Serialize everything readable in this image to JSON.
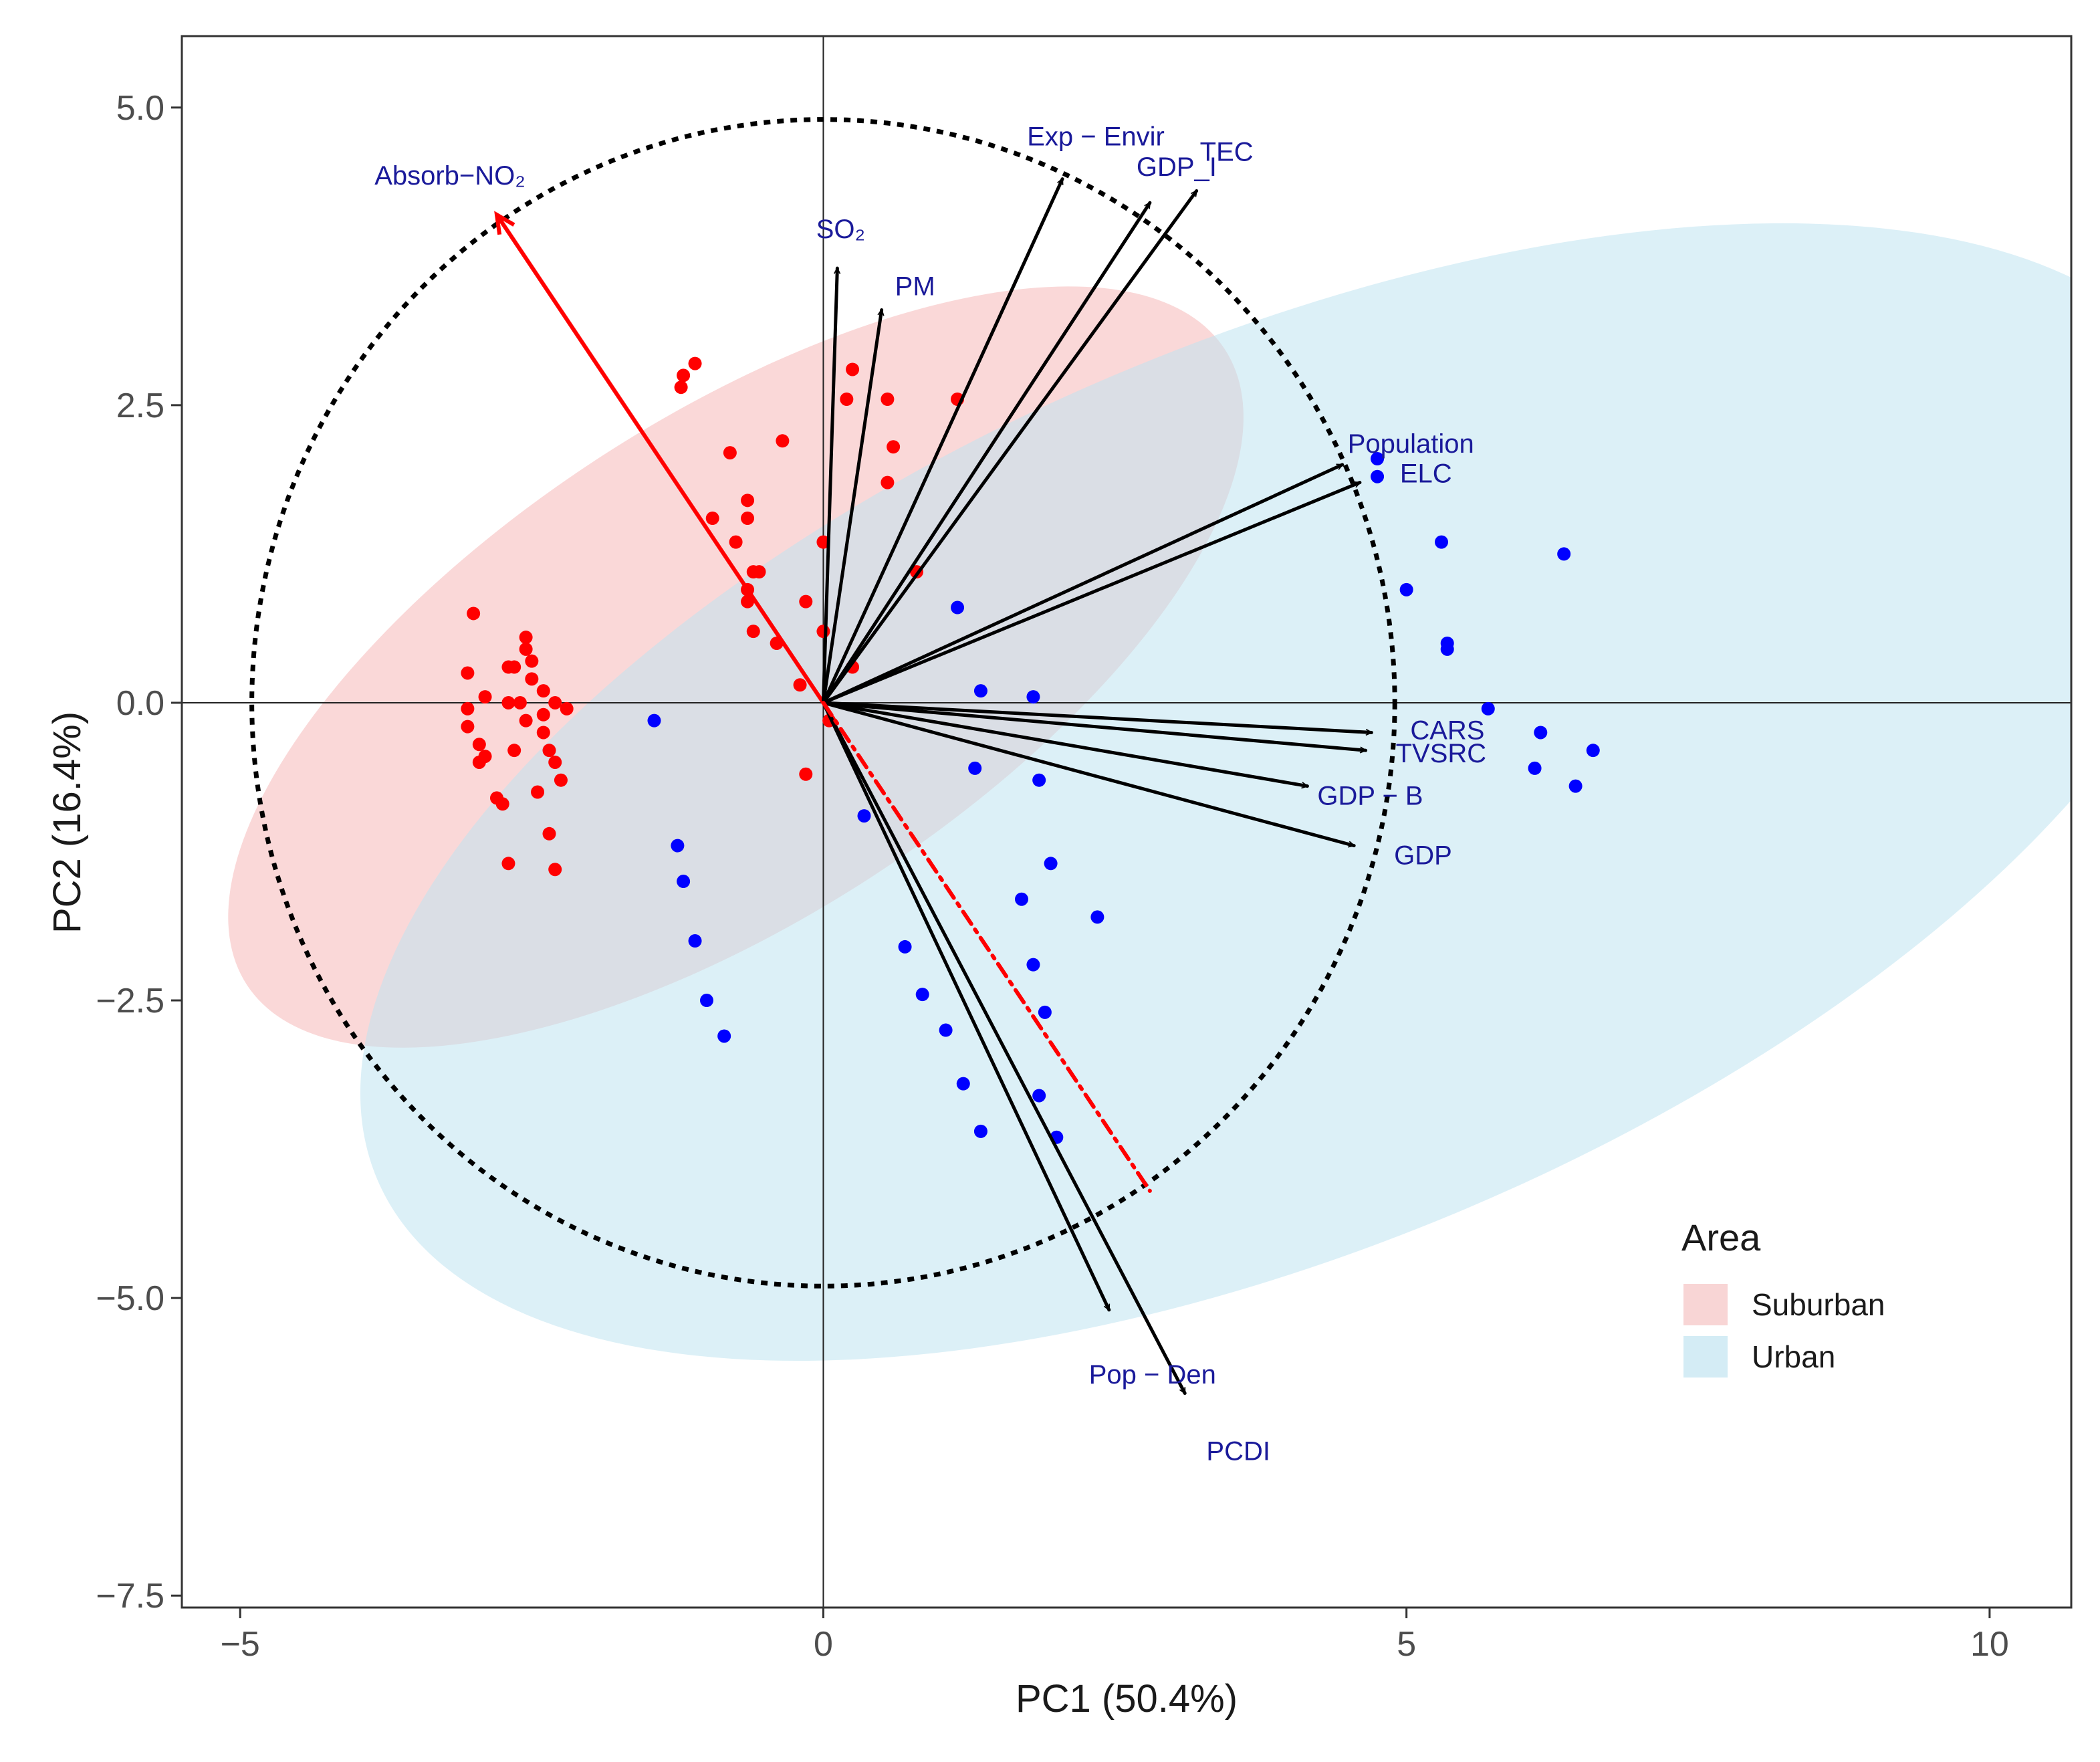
{
  "chart_data": {
    "type": "scatter",
    "subtype": "pca-biplot",
    "title": "",
    "xlabel": "PC1 (50.4%)",
    "ylabel": "PC2 (16.4%)",
    "xlim": [
      -5.5,
      10.7
    ],
    "ylim": [
      -7.6,
      5.6
    ],
    "x_ticks": [
      -5,
      0,
      5,
      10
    ],
    "x_tick_labels": [
      "−5",
      "0",
      "5",
      "10"
    ],
    "y_ticks": [
      5.0,
      2.5,
      0.0,
      -2.5,
      -5.0,
      -7.5
    ],
    "y_tick_labels": [
      "5.0",
      "2.5",
      "0.0",
      "−2.5",
      "−5.0",
      "−7.5"
    ],
    "grid": false,
    "reference_lines": {
      "x": 0,
      "y": 0
    },
    "correlation_circle_radius": 4.9,
    "legend": {
      "title": "Area",
      "position": "bottom-right",
      "entries": [
        {
          "label": "Suburban",
          "color": "#f8d5d5"
        },
        {
          "label": "Urban",
          "color": "#d4ecf5"
        }
      ]
    },
    "ellipses": [
      {
        "group": "Suburban",
        "cx": -0.75,
        "cy": 0.3,
        "semi_major": 5.0,
        "semi_minor": 2.1,
        "angle_deg": 33,
        "color": "#f4a8a8",
        "opacity": 0.45
      },
      {
        "group": "Urban",
        "cx": 4.0,
        "cy": -0.75,
        "semi_major": 8.5,
        "semi_minor": 3.8,
        "angle_deg": 23,
        "color": "#bfe3f0",
        "opacity": 0.55
      }
    ],
    "series": [
      {
        "name": "Suburban",
        "color": "#ff0000",
        "points": [
          [
            -1.2,
            2.75
          ],
          [
            -1.1,
            2.85
          ],
          [
            -1.22,
            2.65
          ],
          [
            0.25,
            2.8
          ],
          [
            0.55,
            2.55
          ],
          [
            0.2,
            2.55
          ],
          [
            1.15,
            2.55
          ],
          [
            -0.35,
            2.2
          ],
          [
            -0.8,
            2.1
          ],
          [
            0.6,
            2.15
          ],
          [
            0.55,
            1.85
          ],
          [
            -0.65,
            1.7
          ],
          [
            -0.65,
            1.55
          ],
          [
            -0.95,
            1.55
          ],
          [
            -0.75,
            1.35
          ],
          [
            0.0,
            1.35
          ],
          [
            0.8,
            1.1
          ],
          [
            -0.55,
            1.1
          ],
          [
            -0.6,
            1.1
          ],
          [
            -0.65,
            0.95
          ],
          [
            -0.65,
            0.85
          ],
          [
            -0.15,
            0.85
          ],
          [
            -0.6,
            0.6
          ],
          [
            0.0,
            0.6
          ],
          [
            -0.4,
            0.5
          ],
          [
            0.25,
            0.3
          ],
          [
            -0.2,
            0.15
          ],
          [
            -3.0,
            0.75
          ],
          [
            -2.55,
            0.55
          ],
          [
            -2.55,
            0.45
          ],
          [
            -2.5,
            0.35
          ],
          [
            -2.7,
            0.3
          ],
          [
            -2.65,
            0.3
          ],
          [
            -3.05,
            0.25
          ],
          [
            -2.5,
            0.2
          ],
          [
            -2.4,
            0.1
          ],
          [
            -2.9,
            0.05
          ],
          [
            -2.6,
            0.0
          ],
          [
            -2.7,
            0.0
          ],
          [
            -2.3,
            0.0
          ],
          [
            -3.05,
            -0.05
          ],
          [
            -2.2,
            -0.05
          ],
          [
            -2.4,
            -0.1
          ],
          [
            -2.55,
            -0.15
          ],
          [
            -3.05,
            -0.2
          ],
          [
            -2.4,
            -0.25
          ],
          [
            -2.95,
            -0.35
          ],
          [
            -2.65,
            -0.4
          ],
          [
            -2.35,
            -0.4
          ],
          [
            -2.9,
            -0.45
          ],
          [
            -2.95,
            -0.5
          ],
          [
            -2.3,
            -0.5
          ],
          [
            -2.25,
            -0.65
          ],
          [
            -2.45,
            -0.75
          ],
          [
            -2.8,
            -0.8
          ],
          [
            -2.75,
            -0.85
          ],
          [
            -2.35,
            -1.1
          ],
          [
            -2.7,
            -1.35
          ],
          [
            -2.3,
            -1.4
          ],
          [
            0.05,
            -0.15
          ],
          [
            -0.15,
            -0.6
          ]
        ]
      },
      {
        "name": "Urban",
        "color": "#0000ff",
        "points": [
          [
            4.75,
            2.05
          ],
          [
            4.75,
            1.9
          ],
          [
            5.3,
            1.35
          ],
          [
            6.35,
            1.25
          ],
          [
            5.0,
            0.95
          ],
          [
            5.35,
            0.5
          ],
          [
            5.35,
            0.45
          ],
          [
            5.7,
            -0.05
          ],
          [
            6.15,
            -0.25
          ],
          [
            6.6,
            -0.4
          ],
          [
            6.1,
            -0.55
          ],
          [
            6.45,
            -0.7
          ],
          [
            1.15,
            0.8
          ],
          [
            1.35,
            0.1
          ],
          [
            1.8,
            0.05
          ],
          [
            1.3,
            -0.55
          ],
          [
            1.85,
            -0.65
          ],
          [
            1.95,
            -1.35
          ],
          [
            1.7,
            -1.65
          ],
          [
            2.35,
            -1.8
          ],
          [
            0.35,
            -0.95
          ],
          [
            0.7,
            -2.05
          ],
          [
            0.85,
            -2.45
          ],
          [
            1.8,
            -2.2
          ],
          [
            1.9,
            -2.6
          ],
          [
            1.05,
            -2.75
          ],
          [
            1.2,
            -3.2
          ],
          [
            1.85,
            -3.3
          ],
          [
            1.35,
            -3.6
          ],
          [
            2.0,
            -3.65
          ],
          [
            -1.45,
            -0.15
          ],
          [
            -1.25,
            -1.2
          ],
          [
            -1.2,
            -1.5
          ],
          [
            -1.1,
            -2.0
          ],
          [
            -1.0,
            -2.5
          ],
          [
            -0.85,
            -2.8
          ]
        ]
      }
    ],
    "vectors": [
      {
        "label": "Absorb−NO₂",
        "x": -2.8,
        "y": 4.1,
        "color": "#ff0000",
        "style": "solid"
      },
      {
        "label": "SO₂",
        "x": 0.12,
        "y": 3.65,
        "color": "#000000",
        "style": "solid"
      },
      {
        "label": "PM",
        "x": 0.5,
        "y": 3.3,
        "color": "#000000",
        "style": "solid"
      },
      {
        "label": "Exp − Envir",
        "x": 2.05,
        "y": 4.4,
        "color": "#000000",
        "style": "solid"
      },
      {
        "label": "GDP_I",
        "x": 2.8,
        "y": 4.2,
        "color": "#000000",
        "style": "solid"
      },
      {
        "label": "TEC",
        "x": 3.2,
        "y": 4.3,
        "color": "#000000",
        "style": "solid"
      },
      {
        "label": "Population",
        "x": 4.45,
        "y": 2.0,
        "color": "#000000",
        "style": "solid"
      },
      {
        "label": "ELC",
        "x": 4.6,
        "y": 1.85,
        "color": "#000000",
        "style": "solid"
      },
      {
        "label": "CARS",
        "x": 4.7,
        "y": -0.25,
        "color": "#000000",
        "style": "solid"
      },
      {
        "label": "TVSRC",
        "x": 4.65,
        "y": -0.4,
        "color": "#000000",
        "style": "solid"
      },
      {
        "label": "GDP − B",
        "x": 4.15,
        "y": -0.7,
        "color": "#000000",
        "style": "solid"
      },
      {
        "label": "GDP",
        "x": 4.55,
        "y": -1.2,
        "color": "#000000",
        "style": "solid"
      },
      {
        "label": "Pop − Den",
        "x": 2.45,
        "y": -5.1,
        "color": "#000000",
        "style": "solid"
      },
      {
        "label": "PCDI",
        "x": 3.1,
        "y": -5.8,
        "color": "#000000",
        "style": "solid"
      },
      {
        "label": "",
        "x": 2.8,
        "y": -4.1,
        "color": "#ff0000",
        "style": "dashdot"
      }
    ]
  }
}
